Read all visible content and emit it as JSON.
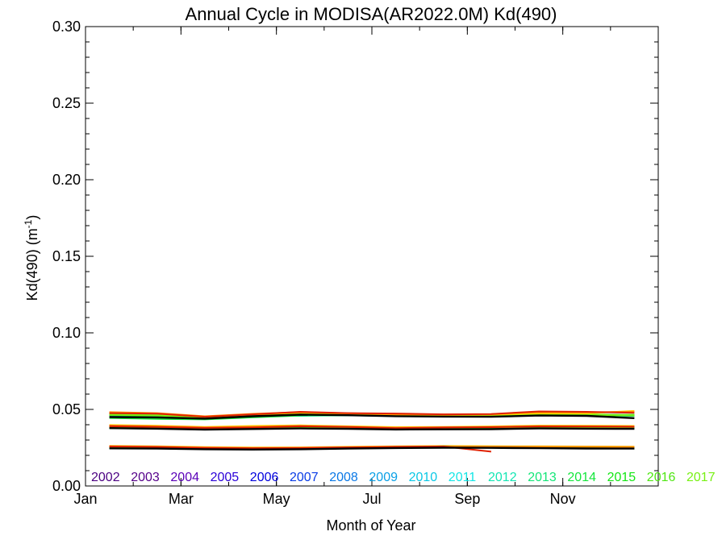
{
  "chart_data": {
    "type": "line",
    "title": "Annual Cycle in MODISA(AR2022.0M) Kd(490)",
    "xlabel": "Month of Year",
    "ylabel_main": "Kd(490) (m",
    "ylabel_sup": "-1",
    "ylabel_close": ")",
    "xlim": [
      0,
      12
    ],
    "ylim": [
      0.0,
      0.3
    ],
    "grid": false,
    "legend": "bottom",
    "x_ticks": [
      {
        "value": 0,
        "label": "Jan"
      },
      {
        "value": 2,
        "label": "Mar"
      },
      {
        "value": 4,
        "label": "May"
      },
      {
        "value": 6,
        "label": "Jul"
      },
      {
        "value": 8,
        "label": "Sep"
      },
      {
        "value": 10,
        "label": "Nov"
      }
    ],
    "y_ticks": [
      {
        "value": 0.0,
        "label": "0.00"
      },
      {
        "value": 0.05,
        "label": "0.05"
      },
      {
        "value": 0.1,
        "label": "0.10"
      },
      {
        "value": 0.15,
        "label": "0.15"
      },
      {
        "value": 0.2,
        "label": "0.20"
      },
      {
        "value": 0.25,
        "label": "0.25"
      },
      {
        "value": 0.3,
        "label": "0.30"
      }
    ],
    "x": [
      0.5,
      1.5,
      2.5,
      3.5,
      4.5,
      5.5,
      6.5,
      7.5,
      8.5,
      9.5,
      10.5,
      11.5
    ],
    "series": [
      {
        "name": "2002",
        "color": "#4b0082",
        "groups": [
          [
            0.0468,
            0.0462,
            0.0448,
            0.046,
            0.0472,
            0.0466,
            0.046,
            0.0458,
            0.046,
            0.0468,
            0.0466,
            0.0462
          ],
          [
            0.0385,
            0.038,
            0.0376,
            0.0378,
            0.0382,
            0.0378,
            0.0374,
            0.0376,
            0.0378,
            0.0383,
            0.0381,
            0.0379
          ],
          [
            0.0252,
            0.025,
            0.0246,
            0.0244,
            0.0246,
            0.025,
            0.0254,
            0.0256,
            0.0254,
            0.0252,
            0.025,
            0.0248
          ]
        ]
      },
      {
        "name": "2003",
        "color": "#55008a",
        "groups": [
          [
            0.0462,
            0.0458,
            0.0446,
            0.0458,
            0.047,
            0.0464,
            0.0458,
            0.0456,
            0.0458,
            0.0466,
            0.0464,
            0.046
          ],
          [
            0.0383,
            0.0378,
            0.0374,
            0.0376,
            0.038,
            0.0376,
            0.0372,
            0.0374,
            0.0376,
            0.0381,
            0.0379,
            0.0377
          ],
          [
            0.025,
            0.0248,
            0.0244,
            0.0243,
            0.0245,
            0.0249,
            0.0253,
            0.0255,
            0.0253,
            0.0251,
            0.0249,
            0.0247
          ]
        ]
      },
      {
        "name": "2004",
        "color": "#5a00b8",
        "groups": [
          [
            0.0465,
            0.046,
            0.0448,
            0.046,
            0.0471,
            0.0465,
            0.046,
            0.0457,
            0.0459,
            0.0467,
            0.0465,
            0.0461
          ],
          [
            0.0384,
            0.0379,
            0.0375,
            0.0377,
            0.0381,
            0.0377,
            0.0373,
            0.0375,
            0.0377,
            0.0382,
            0.038,
            0.0378
          ],
          [
            0.0251,
            0.0249,
            0.0245,
            0.0243,
            0.0245,
            0.0249,
            0.0253,
            0.0255,
            0.0253,
            0.0251,
            0.0249,
            0.0247
          ]
        ]
      },
      {
        "name": "2005",
        "color": "#2a00d8",
        "groups": [
          [
            0.0466,
            0.0461,
            0.0449,
            0.0461,
            0.0472,
            0.0466,
            0.0461,
            0.0458,
            0.046,
            0.0468,
            0.0466,
            0.0462
          ],
          [
            0.0385,
            0.038,
            0.0376,
            0.0378,
            0.0382,
            0.0378,
            0.0374,
            0.0376,
            0.0378,
            0.0383,
            0.0381,
            0.0379
          ],
          [
            0.0252,
            0.025,
            0.0246,
            0.0244,
            0.0246,
            0.025,
            0.0254,
            0.0256,
            0.0254,
            0.0252,
            0.025,
            0.0248
          ]
        ]
      },
      {
        "name": "2006",
        "color": "#0000dd",
        "groups": [
          [
            0.0464,
            0.046,
            0.0447,
            0.0459,
            0.047,
            0.0464,
            0.0459,
            0.0456,
            0.0458,
            0.0466,
            0.0464,
            0.046
          ],
          [
            0.0384,
            0.0379,
            0.0375,
            0.0377,
            0.0381,
            0.0377,
            0.0373,
            0.0375,
            0.0377,
            0.0382,
            0.038,
            0.0378
          ],
          [
            0.0251,
            0.0249,
            0.0245,
            0.0243,
            0.0245,
            0.0249,
            0.0253,
            0.0255,
            0.0253,
            0.0251,
            0.0249,
            0.0247
          ]
        ]
      },
      {
        "name": "2007",
        "color": "#0a3ce6",
        "groups": [
          [
            0.0467,
            0.0462,
            0.045,
            0.0462,
            0.0473,
            0.0467,
            0.0462,
            0.0459,
            0.0461,
            0.0469,
            0.0467,
            0.0463
          ],
          [
            0.0386,
            0.0381,
            0.0377,
            0.0379,
            0.0383,
            0.0379,
            0.0375,
            0.0377,
            0.0379,
            0.0384,
            0.0382,
            0.038
          ],
          [
            0.0252,
            0.025,
            0.0246,
            0.0244,
            0.0246,
            0.025,
            0.0254,
            0.0256,
            0.0254,
            0.0252,
            0.025,
            0.0248
          ]
        ]
      },
      {
        "name": "2008",
        "color": "#0a78e6",
        "groups": [
          [
            0.0463,
            0.0459,
            0.0446,
            0.0458,
            0.0469,
            0.0463,
            0.0458,
            0.0455,
            0.0457,
            0.0465,
            0.0463,
            0.0459
          ],
          [
            0.0383,
            0.0378,
            0.0374,
            0.0376,
            0.038,
            0.0376,
            0.0372,
            0.0374,
            0.0376,
            0.0381,
            0.0379,
            0.0377
          ],
          [
            0.025,
            0.0248,
            0.0244,
            0.0242,
            0.0244,
            0.0248,
            0.0252,
            0.0254,
            0.0252,
            0.025,
            0.0248,
            0.0246
          ]
        ]
      },
      {
        "name": "2009",
        "color": "#0aa0e6",
        "groups": [
          [
            0.0466,
            0.0461,
            0.0449,
            0.0461,
            0.0472,
            0.0466,
            0.0461,
            0.0458,
            0.046,
            0.0468,
            0.0466,
            0.0462
          ],
          [
            0.0385,
            0.038,
            0.0376,
            0.0378,
            0.0382,
            0.0378,
            0.0374,
            0.0376,
            0.0378,
            0.0383,
            0.0381,
            0.0379
          ],
          [
            0.0252,
            0.025,
            0.0246,
            0.0244,
            0.0246,
            0.025,
            0.0254,
            0.0256,
            0.0254,
            0.0252,
            0.025,
            0.0248
          ]
        ]
      },
      {
        "name": "2010",
        "color": "#0ac8e6",
        "groups": [
          [
            0.0462,
            0.0458,
            0.0445,
            0.0457,
            0.0468,
            0.0462,
            0.0457,
            0.0454,
            0.0456,
            0.0464,
            0.0462,
            0.0458
          ],
          [
            0.0382,
            0.0377,
            0.0373,
            0.0375,
            0.0379,
            0.0375,
            0.0371,
            0.0373,
            0.0375,
            0.038,
            0.0378,
            0.0376
          ],
          [
            0.025,
            0.0248,
            0.0244,
            0.0242,
            0.0244,
            0.0248,
            0.0252,
            0.0254,
            0.0252,
            0.025,
            0.0248,
            0.0246
          ]
        ]
      },
      {
        "name": "2011",
        "color": "#14e6e6",
        "groups": [
          [
            0.0465,
            0.046,
            0.0448,
            0.046,
            0.0458,
            0.0462,
            0.0464,
            0.0462,
            0.046,
            0.0466,
            0.0465,
            0.0461
          ],
          [
            0.0384,
            0.0379,
            0.0375,
            0.0377,
            0.0381,
            0.0377,
            0.0373,
            0.0375,
            0.0377,
            0.0382,
            0.038,
            0.0378
          ],
          [
            0.0251,
            0.0249,
            0.0245,
            0.0243,
            0.0245,
            0.0249,
            0.0253,
            0.0262,
            0.0258,
            0.0252,
            0.0249,
            0.0247
          ]
        ]
      },
      {
        "name": "2012",
        "color": "#14e6b4",
        "groups": [
          [
            0.0464,
            0.0459,
            0.0447,
            0.0459,
            0.0461,
            0.0463,
            0.046,
            0.0457,
            0.0459,
            0.0466,
            0.0464,
            0.046
          ],
          [
            0.0384,
            0.0379,
            0.0375,
            0.0377,
            0.0381,
            0.0377,
            0.0373,
            0.0375,
            0.0377,
            0.0382,
            0.038,
            0.0378
          ],
          [
            0.0251,
            0.0249,
            0.0245,
            0.0243,
            0.0245,
            0.0249,
            0.0256,
            0.0258,
            0.0254,
            0.0251,
            0.0249,
            0.0247
          ]
        ]
      },
      {
        "name": "2013",
        "color": "#14e678",
        "groups": [
          [
            0.0466,
            0.0461,
            0.0449,
            0.0461,
            0.0472,
            0.0466,
            0.0461,
            0.0458,
            0.046,
            0.0468,
            0.0466,
            0.0462
          ],
          [
            0.0385,
            0.038,
            0.0376,
            0.0378,
            0.0382,
            0.0378,
            0.0374,
            0.0376,
            0.0378,
            0.0383,
            0.0381,
            0.0379
          ],
          [
            0.0252,
            0.025,
            0.0246,
            0.0244,
            0.0246,
            0.025,
            0.0254,
            0.0256,
            0.0254,
            0.0252,
            0.025,
            0.0248
          ]
        ]
      },
      {
        "name": "2014",
        "color": "#14e63c",
        "groups": [
          [
            0.0444,
            0.0438,
            0.0435,
            0.0448,
            0.046,
            0.0462,
            0.0458,
            0.0455,
            0.0457,
            0.0462,
            0.046,
            0.0465
          ],
          [
            0.0378,
            0.0374,
            0.0372,
            0.0375,
            0.0379,
            0.0375,
            0.0371,
            0.0373,
            0.0375,
            0.0378,
            0.0376,
            0.0382
          ],
          [
            0.0249,
            0.0247,
            0.0244,
            0.0242,
            0.0244,
            0.0248,
            0.0252,
            0.0254,
            0.0252,
            0.025,
            0.0248,
            0.0246
          ]
        ]
      },
      {
        "name": "2015",
        "color": "#14e614",
        "groups": [
          [
            0.0463,
            0.0459,
            0.0446,
            0.0458,
            0.0469,
            0.0463,
            0.0458,
            0.0455,
            0.0457,
            0.0465,
            0.0463,
            0.0459
          ],
          [
            0.0383,
            0.0378,
            0.0374,
            0.0376,
            0.038,
            0.0376,
            0.0372,
            0.0374,
            0.0376,
            0.0381,
            0.0379,
            0.0377
          ],
          [
            0.025,
            0.0248,
            0.0244,
            0.0242,
            0.0244,
            0.0248,
            0.0252,
            0.0254,
            0.0252,
            0.025,
            0.0248,
            0.0246
          ]
        ]
      },
      {
        "name": "2016",
        "color": "#50e614",
        "groups": [
          [
            0.0467,
            0.0462,
            0.045,
            0.0462,
            0.0473,
            0.0467,
            0.0462,
            0.0459,
            0.0461,
            0.0469,
            0.0467,
            0.0463
          ],
          [
            0.0386,
            0.0381,
            0.0377,
            0.0379,
            0.0383,
            0.0379,
            0.0375,
            0.0377,
            0.0379,
            0.0384,
            0.0382,
            0.038
          ],
          [
            0.0252,
            0.025,
            0.0246,
            0.0244,
            0.0246,
            0.025,
            0.0254,
            0.0256,
            0.0254,
            0.0252,
            0.025,
            0.0248
          ]
        ]
      },
      {
        "name": "2017",
        "color": "#78f014",
        "groups": [
          [
            0.0465,
            0.046,
            0.0448,
            0.046,
            0.0471,
            0.0465,
            0.046,
            0.0457,
            0.0459,
            0.0467,
            0.0465,
            0.0461
          ],
          [
            0.0384,
            0.0379,
            0.0375,
            0.0377,
            0.0381,
            0.0377,
            0.0373,
            0.0375,
            0.0377,
            0.0382,
            0.038,
            0.0378
          ],
          [
            0.0251,
            0.0249,
            0.0245,
            0.0243,
            0.0245,
            0.0249,
            0.0253,
            0.0255,
            0.0253,
            0.0251,
            0.0249,
            0.0247
          ]
        ]
      },
      {
        "name": "",
        "color": "#ffd700",
        "groups": [
          [
            0.0478,
            0.0472,
            0.0452,
            0.0466,
            0.0478,
            0.0472,
            0.0466,
            0.0463,
            0.0466,
            0.0474,
            0.0474,
            0.049
          ],
          [
            0.0398,
            0.0393,
            0.0386,
            0.0392,
            0.0396,
            0.039,
            0.0384,
            0.0386,
            0.0389,
            0.0394,
            0.0393,
            0.0392
          ],
          [
            0.0262,
            0.0259,
            0.0254,
            0.0251,
            0.0252,
            0.0256,
            0.0259,
            0.0261,
            0.026,
            0.0259,
            0.0258,
            0.0257
          ]
        ]
      },
      {
        "name": "",
        "color": "#ff8c00",
        "groups": [
          [
            0.0482,
            0.0476,
            0.0455,
            0.0471,
            0.0482,
            0.0475,
            0.0469,
            0.0467,
            0.0469,
            0.0482,
            0.048,
            0.0486
          ],
          [
            0.0395,
            0.039,
            0.0383,
            0.0387,
            0.0392,
            0.0387,
            0.0381,
            0.0383,
            0.0386,
            0.0391,
            0.039,
            0.0389
          ],
          [
            0.026,
            0.0257,
            0.0252,
            0.0249,
            0.025,
            0.0254,
            0.0257,
            0.0259,
            0.0258,
            0.0257,
            0.0256,
            0.0255
          ]
        ]
      },
      {
        "name": "",
        "color": "#e02000",
        "groups": [
          [
            0.0476,
            0.0472,
            0.0452,
            0.0468,
            0.0484,
            0.0476,
            0.0473,
            0.0468,
            0.047,
            0.0487,
            0.0484,
            0.0478
          ],
          [
            0.039,
            0.0386,
            0.0379,
            0.0382,
            0.039,
            0.0386,
            0.0378,
            0.0382,
            0.0384,
            0.0389,
            0.0388,
            0.0387
          ],
          [
            0.0258,
            0.0255,
            0.0249,
            0.0247,
            0.0248,
            0.0252,
            0.0256,
            0.0258,
            0.0224,
            null,
            null,
            null
          ]
        ]
      },
      {
        "name": "",
        "color": "#000000",
        "groups": [
          [
            0.045,
            0.0448,
            0.044,
            0.0455,
            0.0466,
            0.0462,
            0.0456,
            0.0453,
            0.0452,
            0.046,
            0.0458,
            0.0443
          ],
          [
            0.0378,
            0.0374,
            0.0368,
            0.0372,
            0.0376,
            0.0373,
            0.0369,
            0.037,
            0.0371,
            0.0376,
            0.0374,
            0.0373
          ],
          [
            0.0246,
            0.0244,
            0.024,
            0.0238,
            0.024,
            0.0244,
            0.0248,
            0.025,
            0.0249,
            0.0247,
            0.0245,
            0.0244
          ]
        ]
      }
    ]
  }
}
